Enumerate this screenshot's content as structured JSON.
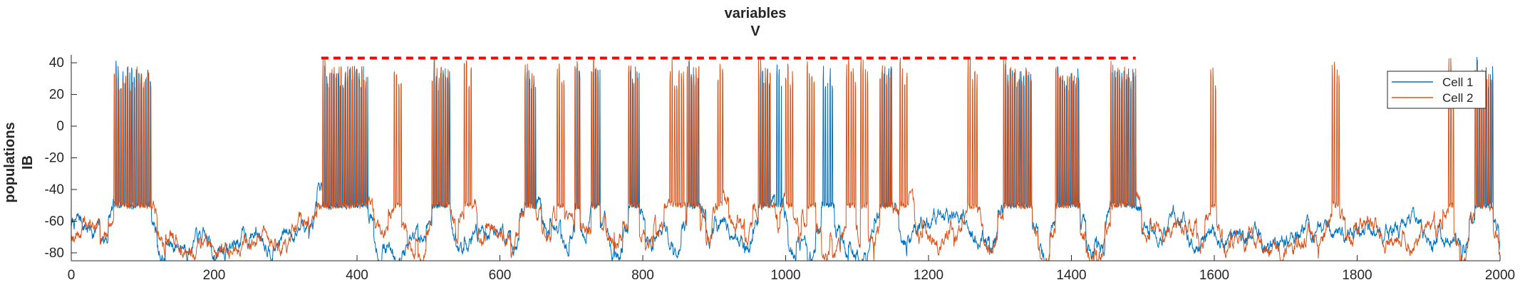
{
  "chart_data": {
    "type": "line",
    "title": [
      "variables",
      "V"
    ],
    "ylabel": [
      "populations",
      "IB"
    ],
    "xlabel": "",
    "xlim": [
      0,
      2000
    ],
    "ylim": [
      -85,
      45
    ],
    "xticks": [
      0,
      200,
      400,
      600,
      800,
      1000,
      1200,
      1400,
      1600,
      1800,
      2000
    ],
    "yticks": [
      -80,
      -60,
      -40,
      -20,
      0,
      20,
      40
    ],
    "grid": false,
    "legend_position": "top-right",
    "series": [
      {
        "name": "Cell 1",
        "color": "#0072BD"
      },
      {
        "name": "Cell 2",
        "color": "#D95319"
      }
    ],
    "reference_line": {
      "y": 43,
      "x_range": [
        350,
        1490
      ],
      "color": "#FF0000",
      "style": "dashed"
    },
    "bursts": [
      {
        "start": 60,
        "end": 112,
        "cells": [
          "Cell 1",
          "Cell 2"
        ]
      },
      {
        "start": 352,
        "end": 415,
        "cells": [
          "Cell 1",
          "Cell 2"
        ]
      },
      {
        "start": 452,
        "end": 462,
        "cells": [
          "Cell 2"
        ]
      },
      {
        "start": 505,
        "end": 530,
        "cells": [
          "Cell 1",
          "Cell 2"
        ]
      },
      {
        "start": 550,
        "end": 560,
        "cells": [
          "Cell 2"
        ]
      },
      {
        "start": 635,
        "end": 650,
        "cells": [
          "Cell 1",
          "Cell 2"
        ]
      },
      {
        "start": 680,
        "end": 690,
        "cells": [
          "Cell 2"
        ]
      },
      {
        "start": 705,
        "end": 712,
        "cells": [
          "Cell 1",
          "Cell 2"
        ]
      },
      {
        "start": 728,
        "end": 740,
        "cells": [
          "Cell 1",
          "Cell 2"
        ]
      },
      {
        "start": 780,
        "end": 795,
        "cells": [
          "Cell 1",
          "Cell 2"
        ]
      },
      {
        "start": 838,
        "end": 860,
        "cells": [
          "Cell 2"
        ]
      },
      {
        "start": 862,
        "end": 880,
        "cells": [
          "Cell 1",
          "Cell 2"
        ]
      },
      {
        "start": 905,
        "end": 912,
        "cells": [
          "Cell 2"
        ]
      },
      {
        "start": 962,
        "end": 980,
        "cells": [
          "Cell 1",
          "Cell 2"
        ]
      },
      {
        "start": 985,
        "end": 995,
        "cells": [
          "Cell 1"
        ]
      },
      {
        "start": 1000,
        "end": 1010,
        "cells": [
          "Cell 2"
        ]
      },
      {
        "start": 1030,
        "end": 1042,
        "cells": [
          "Cell 2"
        ]
      },
      {
        "start": 1050,
        "end": 1068,
        "cells": [
          "Cell 1"
        ]
      },
      {
        "start": 1085,
        "end": 1098,
        "cells": [
          "Cell 2"
        ]
      },
      {
        "start": 1105,
        "end": 1115,
        "cells": [
          "Cell 2"
        ]
      },
      {
        "start": 1132,
        "end": 1150,
        "cells": [
          "Cell 1",
          "Cell 2"
        ]
      },
      {
        "start": 1160,
        "end": 1172,
        "cells": [
          "Cell 2"
        ]
      },
      {
        "start": 1255,
        "end": 1268,
        "cells": [
          "Cell 2"
        ]
      },
      {
        "start": 1305,
        "end": 1345,
        "cells": [
          "Cell 1",
          "Cell 2"
        ]
      },
      {
        "start": 1378,
        "end": 1412,
        "cells": [
          "Cell 1",
          "Cell 2"
        ]
      },
      {
        "start": 1455,
        "end": 1490,
        "cells": [
          "Cell 1",
          "Cell 2"
        ]
      },
      {
        "start": 1595,
        "end": 1603,
        "cells": [
          "Cell 2"
        ]
      },
      {
        "start": 1765,
        "end": 1775,
        "cells": [
          "Cell 2"
        ]
      },
      {
        "start": 1928,
        "end": 1935,
        "cells": [
          "Cell 2"
        ]
      },
      {
        "start": 1965,
        "end": 1990,
        "cells": [
          "Cell 1",
          "Cell 2"
        ]
      }
    ]
  }
}
